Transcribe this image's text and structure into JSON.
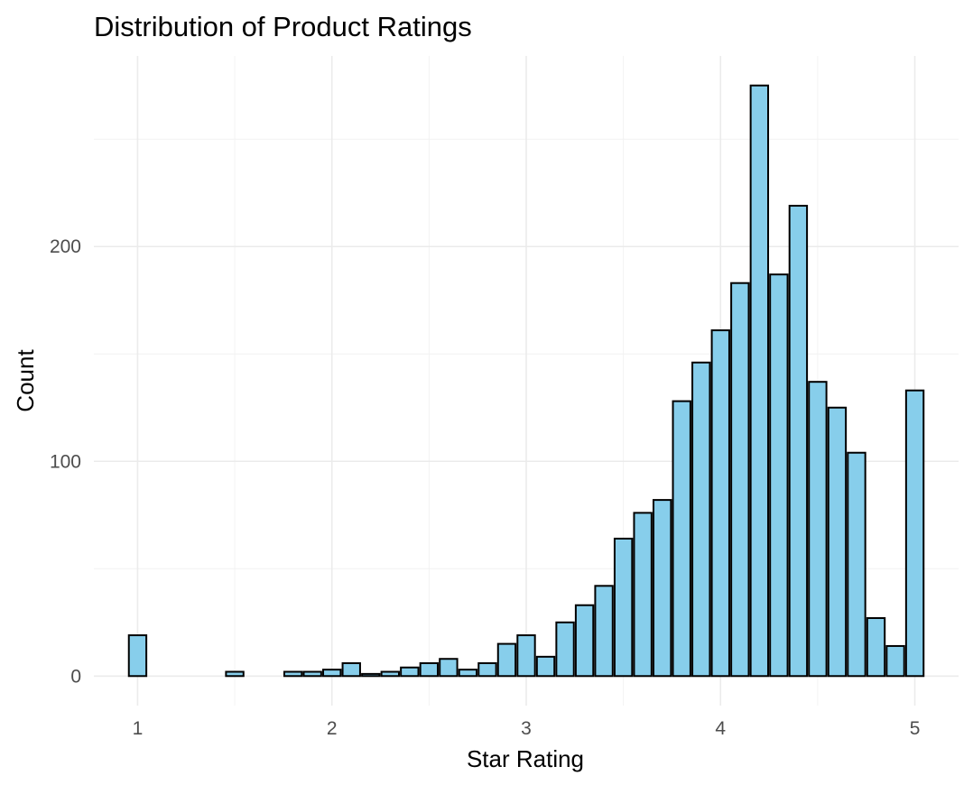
{
  "chart_data": {
    "type": "bar",
    "title": "Distribution of Product Ratings",
    "xlabel": "Star Rating",
    "ylabel": "Count",
    "xlim": [
      0.775,
      5.225
    ],
    "ylim": [
      -13.75,
      288.75
    ],
    "x_ticks": [
      1,
      2,
      3,
      4,
      5
    ],
    "y_ticks": [
      0,
      100,
      200
    ],
    "bar_width": 0.09,
    "grid": true,
    "bar_fill": "#87ceeb",
    "bar_stroke": "#000000",
    "x": [
      1.0,
      1.5,
      1.8,
      1.9,
      2.0,
      2.1,
      2.2,
      2.3,
      2.4,
      2.5,
      2.6,
      2.7,
      2.8,
      2.9,
      3.0,
      3.1,
      3.2,
      3.3,
      3.4,
      3.5,
      3.6,
      3.7,
      3.8,
      3.9,
      4.0,
      4.1,
      4.2,
      4.3,
      4.4,
      4.5,
      4.6,
      4.7,
      4.8,
      4.9,
      5.0
    ],
    "values": [
      19,
      2,
      2,
      2,
      3,
      6,
      1,
      2,
      4,
      6,
      8,
      3,
      6,
      15,
      19,
      9,
      25,
      33,
      42,
      64,
      76,
      82,
      128,
      146,
      161,
      183,
      275,
      187,
      219,
      137,
      125,
      104,
      27,
      14,
      133
    ]
  }
}
